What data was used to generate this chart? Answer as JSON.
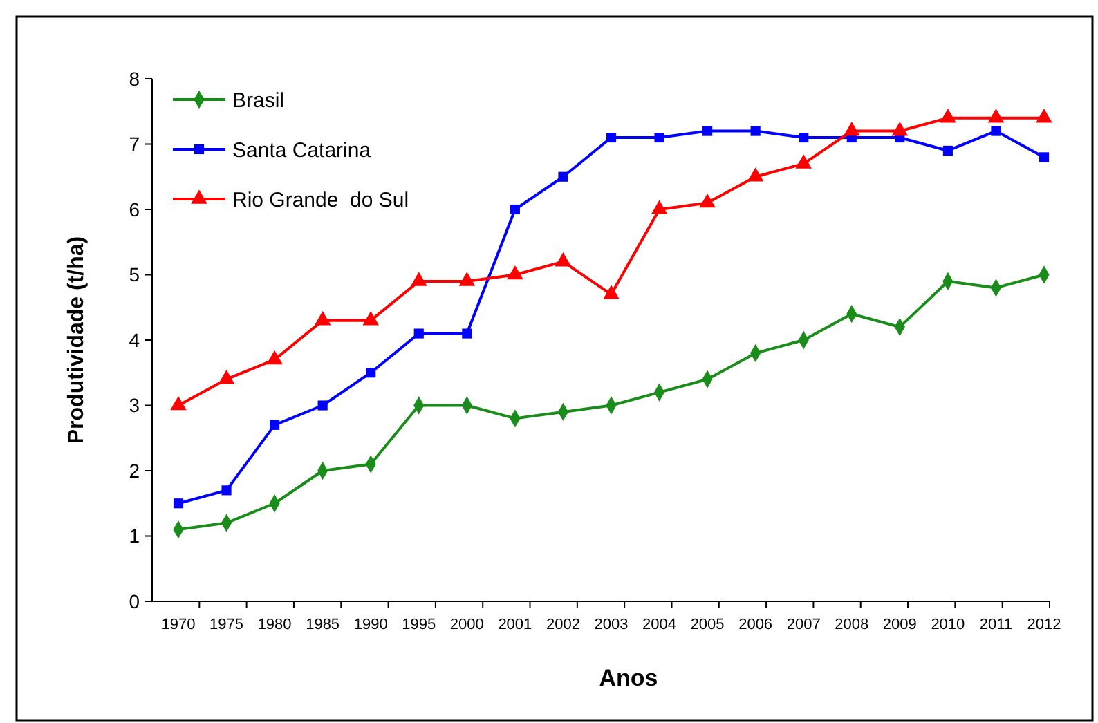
{
  "chart_data": {
    "type": "line",
    "xlabel": "Anos",
    "ylabel": "Produtividade (t/ha)",
    "categories": [
      "1970",
      "1975",
      "1980",
      "1985",
      "1990",
      "1995",
      "2000",
      "2001",
      "2002",
      "2003",
      "2004",
      "2005",
      "2006",
      "2007",
      "2008",
      "2009",
      "2010",
      "2011",
      "2012"
    ],
    "ylim": [
      0,
      8
    ],
    "yticks": [
      0,
      1,
      2,
      3,
      4,
      5,
      6,
      7,
      8
    ],
    "grid": false,
    "legend": "top left",
    "line_style": "solid",
    "series": [
      {
        "name": "Brasil",
        "color": "#1a8c1a",
        "marker": "diamond",
        "values": [
          1.1,
          1.2,
          1.5,
          2.0,
          2.1,
          3.0,
          3.0,
          2.8,
          2.9,
          3.0,
          3.2,
          3.4,
          3.8,
          4.0,
          4.4,
          4.2,
          4.9,
          4.8,
          5.0
        ]
      },
      {
        "name": "Santa Catarina",
        "color": "#0000ff",
        "marker": "square",
        "values": [
          1.5,
          1.7,
          2.7,
          3.0,
          3.5,
          4.1,
          4.1,
          6.0,
          6.5,
          7.1,
          7.1,
          7.2,
          7.2,
          7.1,
          7.1,
          7.1,
          6.9,
          7.2,
          6.8
        ]
      },
      {
        "name": "Rio Grande  do Sul",
        "color": "#ff0000",
        "marker": "triangle",
        "values": [
          3.0,
          3.4,
          3.7,
          4.3,
          4.3,
          4.9,
          4.9,
          5.0,
          5.2,
          4.7,
          6.0,
          6.1,
          6.5,
          6.7,
          7.2,
          7.2,
          7.4,
          7.4,
          7.4
        ]
      }
    ]
  }
}
